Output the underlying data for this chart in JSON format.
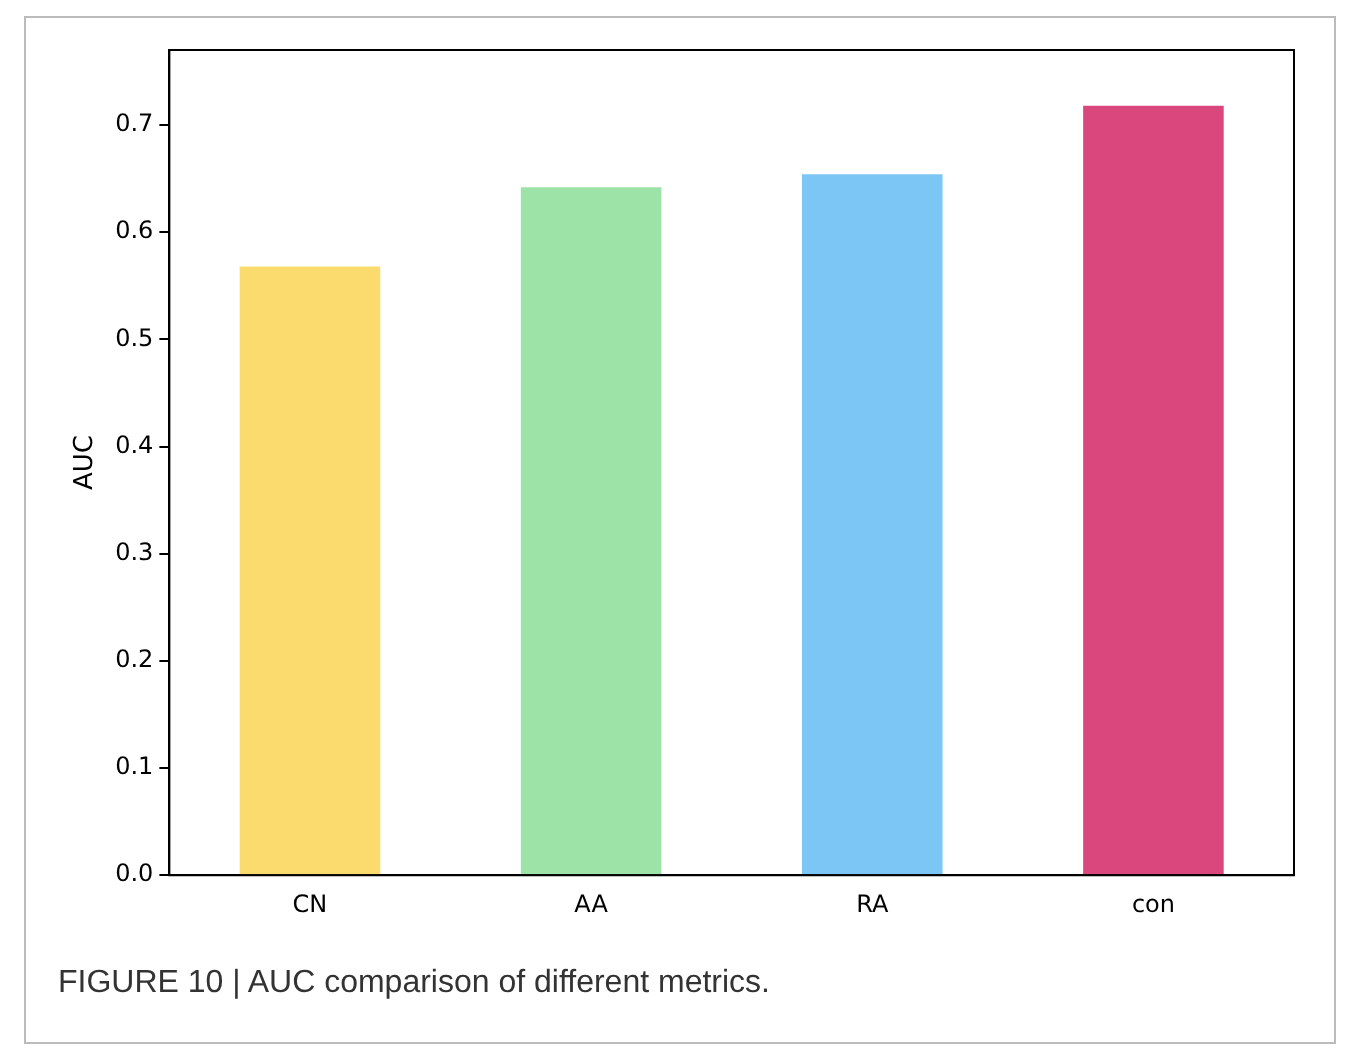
{
  "chart_data": {
    "type": "bar",
    "ylabel": "AUC",
    "categories": [
      "CN",
      "AA",
      "RA",
      "con"
    ],
    "values": [
      0.568,
      0.642,
      0.654,
      0.718
    ],
    "colors": [
      "#fcdb6e",
      "#9de3a8",
      "#7cc6f5",
      "#d9477c"
    ],
    "ylim": [
      0,
      0.77
    ],
    "yticks": [
      {
        "value": 0,
        "label": "0.0"
      },
      {
        "value": 0.1,
        "label": "0.1"
      },
      {
        "value": 0.2,
        "label": "0.2"
      },
      {
        "value": 0.3,
        "label": "0.3"
      },
      {
        "value": 0.4,
        "label": "0.4"
      },
      {
        "value": 0.5,
        "label": "0.5"
      },
      {
        "value": 0.6,
        "label": "0.6"
      },
      {
        "value": 0.7,
        "label": "0.7"
      }
    ],
    "grid": false,
    "legend": false,
    "annotations": [
      "FIGURE 10 | AUC comparison of different metrics."
    ]
  }
}
